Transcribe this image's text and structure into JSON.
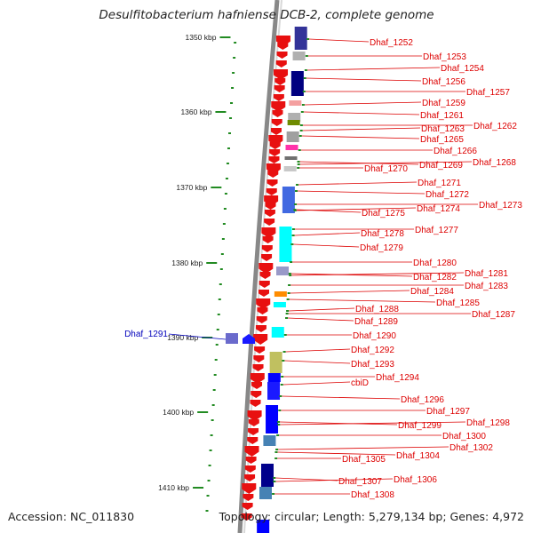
{
  "title": "Desulfitobacterium hafniense DCB-2, complete genome",
  "footer": {
    "accession": "Accession: NC_011830",
    "topology": "Topology: circular; Length: 5,279,134 bp; Genes: 4,972"
  },
  "colors": {
    "backbone": "#888888",
    "tick": "#228b22",
    "gene_arrow": "#e81010",
    "label_red": "#dd0000",
    "label_blue": "#0000bb"
  },
  "scale_labels": [
    "1350 kbp",
    "1360 kbp",
    "1370 kbp",
    "1380 kbp",
    "1390 kbp",
    "1400 kbp",
    "1410 kbp"
  ],
  "genes": [
    "Dhaf_1252",
    "Dhaf_1253",
    "Dhaf_1254",
    "Dhaf_1256",
    "Dhaf_1257",
    "Dhaf_1259",
    "Dhaf_1261",
    "Dhaf_1262",
    "Dhaf_1263",
    "Dhaf_1265",
    "Dhaf_1266",
    "Dhaf_1268",
    "Dhaf_1269",
    "Dhaf_1270",
    "Dhaf_1271",
    "Dhaf_1272",
    "Dhaf_1273",
    "Dhaf_1274",
    "Dhaf_1275",
    "Dhaf_1277",
    "Dhaf_1278",
    "Dhaf_1279",
    "Dhaf_1280",
    "Dhaf_1281",
    "Dhaf_1282",
    "Dhaf_1283",
    "Dhaf_1284",
    "Dhaf_1285",
    "Dhaf_1287",
    "Dhaf_1288",
    "Dhaf_1289",
    "Dhaf_1290",
    "Dhaf_1292",
    "Dhaf_1293",
    "Dhaf_1294",
    "cbiD",
    "Dhaf_1296",
    "Dhaf_1297",
    "Dhaf_1298",
    "Dhaf_1299",
    "Dhaf_1300",
    "Dhaf_1302",
    "Dhaf_1304",
    "Dhaf_1305",
    "Dhaf_1306",
    "Dhaf_1307",
    "Dhaf_1308"
  ],
  "reverse_gene": "Dhaf_1291",
  "cog_colors": [
    "#333399",
    "#4a4aa8",
    "#000080",
    "#1e1e90",
    "#f4a0a0",
    "#b0b0b0",
    "#6e8b00",
    "#a0a0a0",
    "#ff33aa",
    "#c8c8c8",
    "#707070",
    "#9999c8",
    "#4169e1",
    "#00ffff",
    "#7fffd4",
    "#a0a0a0",
    "#ff8c00",
    "#c0c060",
    "#00008b",
    "#0000ff",
    "#1a1aff",
    "#4682b4"
  ]
}
